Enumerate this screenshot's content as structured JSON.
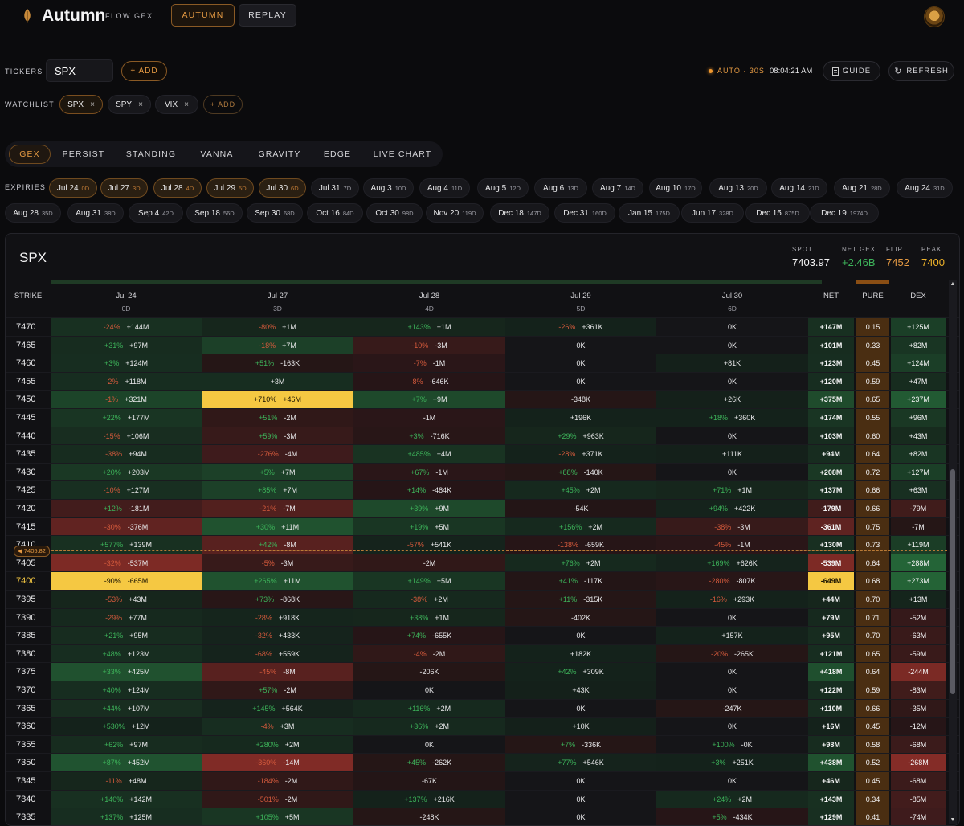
{
  "app": {
    "title": "Autumn",
    "subtitle": "FLOW GEX",
    "modes": [
      "AUTUMN",
      "REPLAY"
    ]
  },
  "tickers": {
    "label": "TICKERS",
    "value": "SPX",
    "add_label": "+ ADD"
  },
  "status": {
    "auto": "AUTO · 30S",
    "time": "08:04:21 AM",
    "guide": "GUIDE",
    "refresh": "REFRESH"
  },
  "watchlist": {
    "label": "WATCHLIST",
    "items": [
      {
        "name": "SPX",
        "x": "×"
      },
      {
        "name": "SPY",
        "x": "×"
      },
      {
        "name": "VIX",
        "x": "×"
      }
    ],
    "add_label": "+ ADD"
  },
  "tabs": [
    "GEX",
    "PERSIST",
    "STANDING",
    "VANNA",
    "GRAVITY",
    "EDGE",
    "LIVE CHART"
  ],
  "expiries": {
    "label": "EXPIRIES",
    "items": [
      {
        "d": "Jul 24",
        "n": "0D"
      },
      {
        "d": "Jul 27",
        "n": "3D"
      },
      {
        "d": "Jul 28",
        "n": "4D"
      },
      {
        "d": "Jul 29",
        "n": "5D"
      },
      {
        "d": "Jul 30",
        "n": "6D"
      },
      {
        "d": "Jul 31",
        "n": "7D"
      },
      {
        "d": "Aug 3",
        "n": "10D"
      },
      {
        "d": "Aug 4",
        "n": "11D"
      },
      {
        "d": "Aug 5",
        "n": "12D"
      },
      {
        "d": "Aug 6",
        "n": "13D"
      },
      {
        "d": "Aug 7",
        "n": "14D"
      },
      {
        "d": "Aug 10",
        "n": "17D"
      },
      {
        "d": "Aug 13",
        "n": "20D"
      },
      {
        "d": "Aug 14",
        "n": "21D"
      },
      {
        "d": "Aug 21",
        "n": "28D"
      },
      {
        "d": "Aug 24",
        "n": "31D"
      },
      {
        "d": "Aug 28",
        "n": "35D"
      },
      {
        "d": "Aug 31",
        "n": "38D"
      },
      {
        "d": "Sep 4",
        "n": "42D"
      },
      {
        "d": "Sep 18",
        "n": "56D"
      },
      {
        "d": "Sep 30",
        "n": "68D"
      },
      {
        "d": "Oct 16",
        "n": "84D"
      },
      {
        "d": "Oct 30",
        "n": "98D"
      },
      {
        "d": "Nov 20",
        "n": "119D"
      },
      {
        "d": "Dec 18",
        "n": "147D"
      },
      {
        "d": "Dec 31",
        "n": "160D"
      },
      {
        "d": "Jan 15",
        "n": "175D"
      },
      {
        "d": "Jun 17",
        "n": "328D"
      },
      {
        "d": "Dec 15",
        "n": "875D"
      },
      {
        "d": "Dec 19",
        "n": "1974D"
      }
    ]
  },
  "panel": {
    "ticker": "SPX",
    "stats": [
      {
        "label": "SPOT",
        "value": "7403.97",
        "color": "#f4f4f5"
      },
      {
        "label": "NET GEX",
        "value": "+2.46B",
        "color": "#3db35a"
      },
      {
        "label": "FLIP",
        "value": "7452",
        "color": "#e59a43"
      },
      {
        "label": "PEAK",
        "value": "7400",
        "color": "#f0b429"
      }
    ],
    "headers": {
      "strike": "STRIKE",
      "net": "NET",
      "pure": "PURE",
      "dex": "DEX",
      "columns": [
        {
          "d": "Jul 24",
          "n": "0D"
        },
        {
          "d": "Jul 27",
          "n": "3D"
        },
        {
          "d": "Jul 28",
          "n": "4D"
        },
        {
          "d": "Jul 29",
          "n": "5D"
        },
        {
          "d": "Jul 30",
          "n": "6D"
        }
      ]
    },
    "spot_marker": "◀ 7405.82"
  },
  "colors": {
    "accent": "#e59a43",
    "positive": "#3db35a",
    "negative": "#d45a3c",
    "highlight": "#f5c842"
  },
  "rows": [
    {
      "s": "7470",
      "c": [
        [
          "-24%",
          "+144M"
        ],
        [
          "-80%",
          "+1M"
        ],
        [
          "+143%",
          "+1M"
        ],
        [
          "-26%",
          "+361K"
        ],
        [
          "",
          "0K"
        ]
      ],
      "net": "+147M",
      "pure": "0.15",
      "dex": "+125M"
    },
    {
      "s": "7465",
      "c": [
        [
          "+31%",
          "+97M"
        ],
        [
          "-18%",
          "+7M"
        ],
        [
          "-10%",
          "-3M"
        ],
        [
          "",
          "0K"
        ],
        [
          "",
          "0K"
        ]
      ],
      "net": "+101M",
      "pure": "0.33",
      "dex": "+82M"
    },
    {
      "s": "7460",
      "c": [
        [
          "+3%",
          "+124M"
        ],
        [
          "+51%",
          "-163K"
        ],
        [
          "-7%",
          "-1M"
        ],
        [
          "",
          "0K"
        ],
        [
          "",
          "+81K"
        ]
      ],
      "net": "+123M",
      "pure": "0.45",
      "dex": "+124M"
    },
    {
      "s": "7455",
      "c": [
        [
          "-2%",
          "+118M"
        ],
        [
          "",
          "+3M"
        ],
        [
          "-8%",
          "-646K"
        ],
        [
          "",
          "0K"
        ],
        [
          "",
          "0K"
        ]
      ],
      "net": "+120M",
      "pure": "0.59",
      "dex": "+47M"
    },
    {
      "s": "7450",
      "c": [
        [
          "-1%",
          "+321M"
        ],
        [
          "+710%",
          "+46M"
        ],
        [
          "+7%",
          "+9M"
        ],
        [
          "",
          "-348K"
        ],
        [
          "",
          "+26K"
        ]
      ],
      "net": "+375M",
      "pure": "0.65",
      "dex": "+237M"
    },
    {
      "s": "7445",
      "c": [
        [
          "+22%",
          "+177M"
        ],
        [
          "+51%",
          "-2M"
        ],
        [
          "",
          "-1M"
        ],
        [
          "",
          "+196K"
        ],
        [
          "+18%",
          "+360K"
        ]
      ],
      "net": "+174M",
      "pure": "0.55",
      "dex": "+96M"
    },
    {
      "s": "7440",
      "c": [
        [
          "-15%",
          "+106M"
        ],
        [
          "+59%",
          "-3M"
        ],
        [
          "+3%",
          "-716K"
        ],
        [
          "+29%",
          "+963K"
        ],
        [
          "",
          "0K"
        ]
      ],
      "net": "+103M",
      "pure": "0.60",
      "dex": "+43M"
    },
    {
      "s": "7435",
      "c": [
        [
          "-38%",
          "+94M"
        ],
        [
          "-276%",
          "-4M"
        ],
        [
          "+485%",
          "+4M"
        ],
        [
          "-28%",
          "+371K"
        ],
        [
          "",
          "+111K"
        ]
      ],
      "net": "+94M",
      "pure": "0.64",
      "dex": "+82M"
    },
    {
      "s": "7430",
      "c": [
        [
          "+20%",
          "+203M"
        ],
        [
          "+5%",
          "+7M"
        ],
        [
          "+67%",
          "-1M"
        ],
        [
          "+88%",
          "-140K"
        ],
        [
          "",
          "0K"
        ]
      ],
      "net": "+208M",
      "pure": "0.72",
      "dex": "+127M"
    },
    {
      "s": "7425",
      "c": [
        [
          "-10%",
          "+127M"
        ],
        [
          "+85%",
          "+7M"
        ],
        [
          "+14%",
          "-484K"
        ],
        [
          "+45%",
          "+2M"
        ],
        [
          "+71%",
          "+1M"
        ]
      ],
      "net": "+137M",
      "pure": "0.66",
      "dex": "+63M"
    },
    {
      "s": "7420",
      "c": [
        [
          "+12%",
          "-181M"
        ],
        [
          "-21%",
          "-7M"
        ],
        [
          "+39%",
          "+9M"
        ],
        [
          "",
          "-54K"
        ],
        [
          "+94%",
          "+422K"
        ]
      ],
      "net": "-179M",
      "pure": "0.66",
      "dex": "-79M"
    },
    {
      "s": "7415",
      "c": [
        [
          "-30%",
          "-376M"
        ],
        [
          "+30%",
          "+11M"
        ],
        [
          "+19%",
          "+5M"
        ],
        [
          "+156%",
          "+2M"
        ],
        [
          "-38%",
          "-3M"
        ]
      ],
      "net": "-361M",
      "pure": "0.75",
      "dex": "-7M"
    },
    {
      "s": "7410",
      "c": [
        [
          "+577%",
          "+139M"
        ],
        [
          "+42%",
          "-8M"
        ],
        [
          "-57%",
          "+541K"
        ],
        [
          "-138%",
          "-659K"
        ],
        [
          "-45%",
          "-1M"
        ]
      ],
      "net": "+130M",
      "pure": "0.73",
      "dex": "+119M"
    },
    {
      "s": "7405",
      "c": [
        [
          "-32%",
          "-537M"
        ],
        [
          "-5%",
          "-3M"
        ],
        [
          "",
          "-2M"
        ],
        [
          "+76%",
          "+2M"
        ],
        [
          "+169%",
          "+626K"
        ]
      ],
      "net": "-539M",
      "pure": "0.64",
      "dex": "+288M"
    },
    {
      "s": "7400",
      "c": [
        [
          "-90%",
          "-665M"
        ],
        [
          "+265%",
          "+11M"
        ],
        [
          "+149%",
          "+5M"
        ],
        [
          "+41%",
          "-117K"
        ],
        [
          "-280%",
          "-807K"
        ]
      ],
      "net": "-649M",
      "pure": "0.68",
      "dex": "+273M"
    },
    {
      "s": "7395",
      "c": [
        [
          "-53%",
          "+43M"
        ],
        [
          "+73%",
          "-868K"
        ],
        [
          "-38%",
          "+2M"
        ],
        [
          "+11%",
          "-315K"
        ],
        [
          "-16%",
          "+293K"
        ]
      ],
      "net": "+44M",
      "pure": "0.70",
      "dex": "+13M"
    },
    {
      "s": "7390",
      "c": [
        [
          "-29%",
          "+77M"
        ],
        [
          "-28%",
          "+918K"
        ],
        [
          "+38%",
          "+1M"
        ],
        [
          "",
          "-402K"
        ],
        [
          "",
          "0K"
        ]
      ],
      "net": "+79M",
      "pure": "0.71",
      "dex": "-52M"
    },
    {
      "s": "7385",
      "c": [
        [
          "+21%",
          "+95M"
        ],
        [
          "-32%",
          "+433K"
        ],
        [
          "+74%",
          "-655K"
        ],
        [
          "",
          "0K"
        ],
        [
          "",
          "+157K"
        ]
      ],
      "net": "+95M",
      "pure": "0.70",
      "dex": "-63M"
    },
    {
      "s": "7380",
      "c": [
        [
          "+48%",
          "+123M"
        ],
        [
          "-68%",
          "+559K"
        ],
        [
          "-4%",
          "-2M"
        ],
        [
          "",
          "+182K"
        ],
        [
          "-20%",
          "-265K"
        ]
      ],
      "net": "+121M",
      "pure": "0.65",
      "dex": "-59M"
    },
    {
      "s": "7375",
      "c": [
        [
          "+33%",
          "+425M"
        ],
        [
          "-45%",
          "-8M"
        ],
        [
          "",
          "-206K"
        ],
        [
          "+42%",
          "+309K"
        ],
        [
          "",
          "0K"
        ]
      ],
      "net": "+418M",
      "pure": "0.64",
      "dex": "-244M"
    },
    {
      "s": "7370",
      "c": [
        [
          "+40%",
          "+124M"
        ],
        [
          "+57%",
          "-2M"
        ],
        [
          "",
          "0K"
        ],
        [
          "",
          "+43K"
        ],
        [
          "",
          "0K"
        ]
      ],
      "net": "+122M",
      "pure": "0.59",
      "dex": "-83M"
    },
    {
      "s": "7365",
      "c": [
        [
          "+44%",
          "+107M"
        ],
        [
          "+145%",
          "+564K"
        ],
        [
          "+116%",
          "+2M"
        ],
        [
          "",
          "0K"
        ],
        [
          "",
          "-247K"
        ]
      ],
      "net": "+110M",
      "pure": "0.66",
      "dex": "-35M"
    },
    {
      "s": "7360",
      "c": [
        [
          "+530%",
          "+12M"
        ],
        [
          "-4%",
          "+3M"
        ],
        [
          "+36%",
          "+2M"
        ],
        [
          "",
          "+10K"
        ],
        [
          "",
          "0K"
        ]
      ],
      "net": "+16M",
      "pure": "0.45",
      "dex": "-12M"
    },
    {
      "s": "7355",
      "c": [
        [
          "+62%",
          "+97M"
        ],
        [
          "+280%",
          "+2M"
        ],
        [
          "",
          "0K"
        ],
        [
          "+7%",
          "-336K"
        ],
        [
          "+100%",
          "-0K"
        ]
      ],
      "net": "+98M",
      "pure": "0.58",
      "dex": "-68M"
    },
    {
      "s": "7350",
      "c": [
        [
          "+87%",
          "+452M"
        ],
        [
          "-360%",
          "-14M"
        ],
        [
          "+45%",
          "-262K"
        ],
        [
          "+77%",
          "+546K"
        ],
        [
          "+3%",
          "+251K"
        ]
      ],
      "net": "+438M",
      "pure": "0.52",
      "dex": "-268M"
    },
    {
      "s": "7345",
      "c": [
        [
          "-11%",
          "+48M"
        ],
        [
          "-184%",
          "-2M"
        ],
        [
          "",
          "-67K"
        ],
        [
          "",
          "0K"
        ],
        [
          "",
          "0K"
        ]
      ],
      "net": "+46M",
      "pure": "0.45",
      "dex": "-68M"
    },
    {
      "s": "7340",
      "c": [
        [
          "+140%",
          "+142M"
        ],
        [
          "-501%",
          "-2M"
        ],
        [
          "+137%",
          "+216K"
        ],
        [
          "",
          "0K"
        ],
        [
          "+24%",
          "+2M"
        ]
      ],
      "net": "+143M",
      "pure": "0.34",
      "dex": "-85M"
    },
    {
      "s": "7335",
      "c": [
        [
          "+137%",
          "+125M"
        ],
        [
          "+105%",
          "+5M"
        ],
        [
          "",
          "-248K"
        ],
        [
          "",
          "0K"
        ],
        [
          "+5%",
          "-434K"
        ]
      ],
      "net": "+129M",
      "pure": "0.41",
      "dex": "-74M"
    }
  ]
}
